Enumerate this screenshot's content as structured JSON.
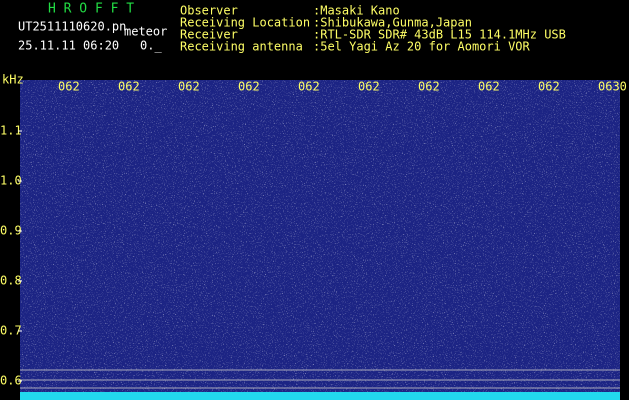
{
  "header": {
    "app": "H R O F F T",
    "file": "UT2511110620.pn",
    "mode": "meteor",
    "datetime": "25.11.11 06:20",
    "level": "0._",
    "fields": [
      {
        "label": "Observer",
        "value": ":Masaki Kano"
      },
      {
        "label": "Receiving Location",
        "value": ":Shibukawa,Gunma,Japan"
      },
      {
        "label": "Receiver",
        "value": ":RTL-SDR SDR# 43dB L15 114.1MHz USB"
      },
      {
        "label": "Receiving antenna",
        "value": ":5el Yagi Az 20 for Aomori VOR"
      }
    ]
  },
  "spectrogram": {
    "y_label": "kHz",
    "ylim": [
      0.578,
      1.202
    ],
    "yticks": [
      1.1,
      {
        "value": 1,
        "label": "1.0"
      },
      0.9,
      0.8,
      0.7,
      0.6
    ],
    "time_labels": [
      "062",
      "062",
      "062",
      "062",
      "062",
      "062",
      "062",
      "062",
      "062",
      "0630"
    ]
  }
}
